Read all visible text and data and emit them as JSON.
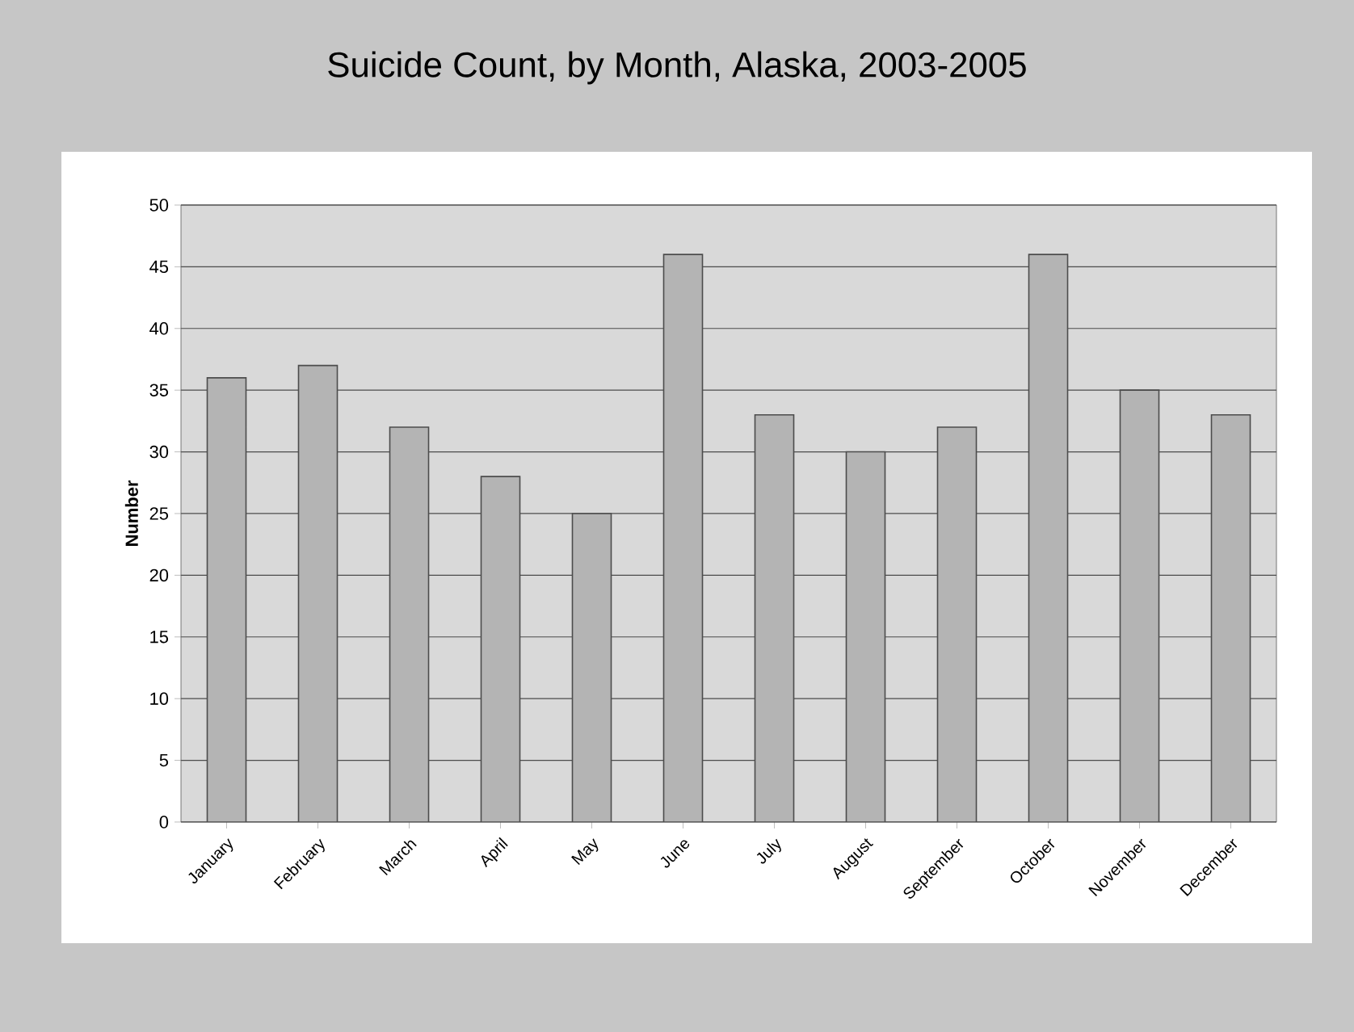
{
  "chart_data": {
    "type": "bar",
    "title": "Suicide Count, by Month, Alaska, 2003-2005",
    "ylabel": "Number",
    "categories": [
      "January",
      "February",
      "March",
      "April",
      "May",
      "June",
      "July",
      "August",
      "September",
      "October",
      "November",
      "December"
    ],
    "values": [
      36,
      37,
      32,
      28,
      25,
      46,
      33,
      30,
      32,
      46,
      35,
      33
    ],
    "color": "#b4b4b4",
    "ylim": [
      0,
      50
    ],
    "yticks": [
      0,
      5,
      10,
      15,
      20,
      25,
      30,
      35,
      40,
      45,
      50
    ],
    "grid": "y"
  }
}
